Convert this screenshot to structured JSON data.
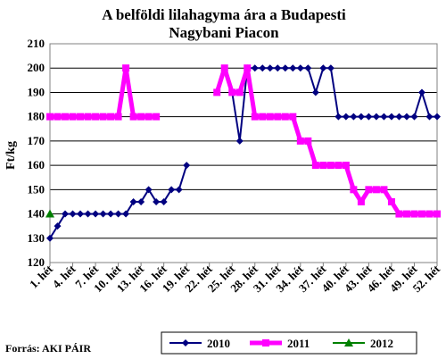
{
  "chart_data": {
    "type": "line",
    "title_lines": [
      "A belföldi lilahagyma ára a Budapesti",
      "Nagybani Piacon"
    ],
    "ylabel": "Ft/kg",
    "ylim": [
      120,
      210
    ],
    "y_ticks": [
      120,
      130,
      140,
      150,
      160,
      170,
      180,
      190,
      200,
      210
    ],
    "x_ticks": [
      1,
      4,
      7,
      10,
      13,
      16,
      19,
      22,
      25,
      28,
      31,
      34,
      37,
      40,
      43,
      46,
      49,
      52
    ],
    "x_tick_suffix": ". hét",
    "grid": true,
    "legend_position": "bottom",
    "series": [
      {
        "name": "2010",
        "color": "#000080",
        "marker": "diamond",
        "values": [
          130,
          135,
          140,
          140,
          140,
          140,
          140,
          140,
          140,
          140,
          140,
          145,
          145,
          150,
          145,
          145,
          150,
          150,
          160,
          null,
          null,
          null,
          null,
          null,
          190,
          170,
          200,
          200,
          200,
          200,
          200,
          200,
          200,
          200,
          200,
          190,
          200,
          200,
          180,
          180,
          180,
          180,
          180,
          180,
          180,
          180,
          180,
          180,
          180,
          190,
          180,
          180
        ]
      },
      {
        "name": "2011",
        "color": "#ff00ff",
        "marker": "square",
        "values": [
          180,
          180,
          180,
          180,
          180,
          180,
          180,
          180,
          180,
          180,
          200,
          180,
          180,
          180,
          180,
          null,
          null,
          null,
          null,
          null,
          null,
          null,
          190,
          200,
          190,
          190,
          200,
          180,
          180,
          180,
          180,
          180,
          180,
          170,
          170,
          160,
          160,
          160,
          160,
          160,
          150,
          145,
          150,
          150,
          150,
          145,
          140,
          140,
          140,
          140,
          140,
          140
        ]
      },
      {
        "name": "2012",
        "color": "#008000",
        "marker": "triangle",
        "values": [
          140,
          null,
          null,
          null,
          null,
          null,
          null,
          null,
          null,
          null,
          null,
          null,
          null,
          null,
          null,
          null,
          null,
          null,
          null,
          null,
          null,
          null,
          null,
          null,
          null,
          null,
          null,
          null,
          null,
          null,
          null,
          null,
          null,
          null,
          null,
          null,
          null,
          null,
          null,
          null,
          null,
          null,
          null,
          null,
          null,
          null,
          null,
          null,
          null,
          null,
          null,
          null
        ]
      }
    ]
  },
  "source": "Forrás: AKI PÁIR"
}
